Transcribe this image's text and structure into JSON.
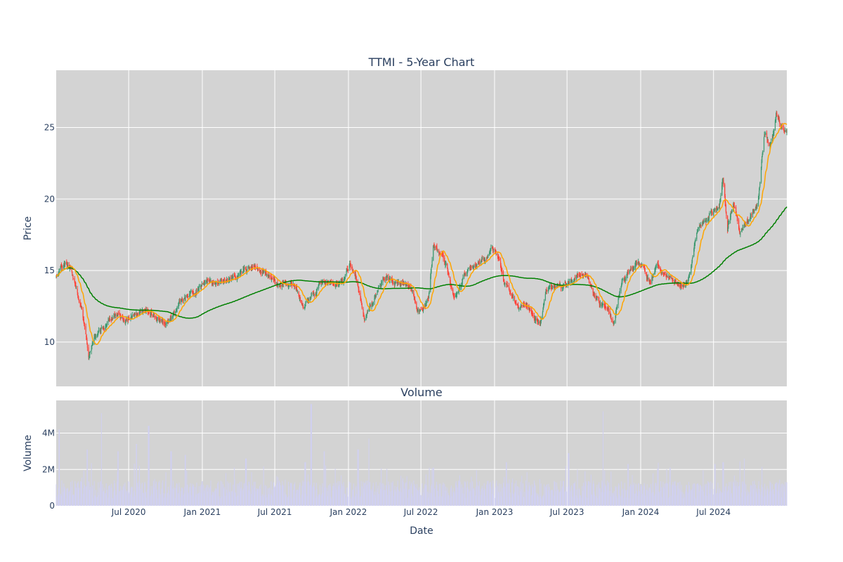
{
  "chart_data": [
    {
      "type": "candlestick",
      "title": "TTMI - 5-Year Chart",
      "ylabel": "Price",
      "ylim": [
        6.9,
        29.0
      ],
      "xlim": [
        "2020-01-02",
        "2024-12-31"
      ],
      "yticks": [
        10,
        15,
        20,
        25
      ],
      "grid": true,
      "legend": "none",
      "colors": {
        "background": "#d3d3d3",
        "grid": "#ffffff",
        "increasing": "#3d9970",
        "decreasing": "#ff4136",
        "ma_short": "#ffa500",
        "ma_long": "#008000"
      },
      "anchors": [
        [
          "2020-01-02",
          14.6
        ],
        [
          "2020-01-20",
          15.4
        ],
        [
          "2020-02-05",
          15.2
        ],
        [
          "2020-02-20",
          13.9
        ],
        [
          "2020-03-05",
          12.6
        ],
        [
          "2020-03-16",
          10.6
        ],
        [
          "2020-03-23",
          8.9
        ],
        [
          "2020-04-06",
          10.3
        ],
        [
          "2020-04-20",
          10.9
        ],
        [
          "2020-05-05",
          11.0
        ],
        [
          "2020-05-20",
          11.6
        ],
        [
          "2020-06-05",
          12.1
        ],
        [
          "2020-06-20",
          11.4
        ],
        [
          "2020-07-10",
          11.8
        ],
        [
          "2020-08-01",
          12.2
        ],
        [
          "2020-08-20",
          12.1
        ],
        [
          "2020-09-10",
          11.6
        ],
        [
          "2020-10-01",
          11.2
        ],
        [
          "2020-10-20",
          12.2
        ],
        [
          "2020-11-10",
          12.9
        ],
        [
          "2020-12-01",
          13.3
        ],
        [
          "2020-12-20",
          13.7
        ],
        [
          "2021-01-10",
          14.1
        ],
        [
          "2021-02-01",
          14.0
        ],
        [
          "2021-02-20",
          14.3
        ],
        [
          "2021-03-15",
          14.4
        ],
        [
          "2021-04-05",
          14.8
        ],
        [
          "2021-04-25",
          15.1
        ],
        [
          "2021-05-15",
          15.1
        ],
        [
          "2021-06-05",
          14.9
        ],
        [
          "2021-06-25",
          14.2
        ],
        [
          "2021-07-10",
          13.9
        ],
        [
          "2021-07-25",
          14.1
        ],
        [
          "2021-08-10",
          14.0
        ],
        [
          "2021-08-25",
          13.7
        ],
        [
          "2021-09-10",
          12.6
        ],
        [
          "2021-09-25",
          13.2
        ],
        [
          "2021-10-10",
          13.5
        ],
        [
          "2021-10-25",
          14.3
        ],
        [
          "2021-11-15",
          14.2
        ],
        [
          "2021-12-05",
          14.0
        ],
        [
          "2021-12-20",
          14.4
        ],
        [
          "2022-01-05",
          15.5
        ],
        [
          "2022-01-20",
          14.5
        ],
        [
          "2022-02-01",
          13.0
        ],
        [
          "2022-02-10",
          11.8
        ],
        [
          "2022-02-25",
          12.4
        ],
        [
          "2022-03-15",
          13.4
        ],
        [
          "2022-04-05",
          14.6
        ],
        [
          "2022-04-25",
          14.1
        ],
        [
          "2022-05-15",
          14.3
        ],
        [
          "2022-06-05",
          14.0
        ],
        [
          "2022-06-20",
          12.4
        ],
        [
          "2022-07-05",
          12.1
        ],
        [
          "2022-07-20",
          12.9
        ],
        [
          "2022-08-01",
          16.5
        ],
        [
          "2022-08-20",
          16.3
        ],
        [
          "2022-09-05",
          15.2
        ],
        [
          "2022-09-20",
          13.2
        ],
        [
          "2022-10-05",
          13.7
        ],
        [
          "2022-10-20",
          15.0
        ],
        [
          "2022-11-10",
          15.3
        ],
        [
          "2022-11-25",
          15.7
        ],
        [
          "2022-12-10",
          15.6
        ],
        [
          "2022-12-25",
          16.7
        ],
        [
          "2023-01-10",
          15.8
        ],
        [
          "2023-01-25",
          13.9
        ],
        [
          "2023-02-10",
          13.5
        ],
        [
          "2023-02-28",
          12.4
        ],
        [
          "2023-03-15",
          12.5
        ],
        [
          "2023-04-05",
          11.9
        ],
        [
          "2023-04-25",
          11.3
        ],
        [
          "2023-05-10",
          13.5
        ],
        [
          "2023-06-01",
          13.7
        ],
        [
          "2023-06-20",
          13.8
        ],
        [
          "2023-07-10",
          14.1
        ],
        [
          "2023-07-25",
          14.7
        ],
        [
          "2023-08-10",
          14.9
        ],
        [
          "2023-08-25",
          14.4
        ],
        [
          "2023-09-10",
          13.1
        ],
        [
          "2023-09-25",
          12.7
        ],
        [
          "2023-10-10",
          12.4
        ],
        [
          "2023-10-25",
          11.3
        ],
        [
          "2023-11-15",
          14.1
        ],
        [
          "2023-12-05",
          14.8
        ],
        [
          "2023-12-25",
          15.8
        ],
        [
          "2024-01-10",
          14.8
        ],
        [
          "2024-01-25",
          14.2
        ],
        [
          "2024-02-10",
          15.6
        ],
        [
          "2024-02-25",
          14.8
        ],
        [
          "2024-03-15",
          14.6
        ],
        [
          "2024-04-05",
          14.2
        ],
        [
          "2024-04-20",
          14.0
        ],
        [
          "2024-05-05",
          15.0
        ],
        [
          "2024-05-20",
          17.8
        ],
        [
          "2024-06-10",
          18.5
        ],
        [
          "2024-06-25",
          19.0
        ],
        [
          "2024-07-15",
          19.5
        ],
        [
          "2024-07-25",
          21.5
        ],
        [
          "2024-08-05",
          17.9
        ],
        [
          "2024-08-20",
          19.8
        ],
        [
          "2024-09-05",
          17.6
        ],
        [
          "2024-09-20",
          18.4
        ],
        [
          "2024-10-05",
          19.0
        ],
        [
          "2024-10-20",
          19.8
        ],
        [
          "2024-11-05",
          24.6
        ],
        [
          "2024-11-20",
          23.8
        ],
        [
          "2024-12-05",
          25.9
        ],
        [
          "2024-12-20",
          25.0
        ],
        [
          "2024-12-31",
          24.9
        ]
      ]
    },
    {
      "type": "bar",
      "title": "Volume",
      "xlabel": "Date",
      "ylabel": "Volume",
      "ylim": [
        0,
        5800000
      ],
      "yticks": [
        0,
        2000000,
        4000000
      ],
      "ytick_labels": [
        "0",
        "2M",
        "4M"
      ],
      "xtick_dates": [
        "2020-07-01",
        "2021-01-01",
        "2021-07-01",
        "2022-01-01",
        "2022-07-01",
        "2023-01-01",
        "2023-07-01",
        "2024-01-01",
        "2024-07-01"
      ],
      "xtick_labels": [
        "Jul 2020",
        "Jan 2021",
        "Jul 2021",
        "Jan 2022",
        "Jul 2022",
        "Jan 2023",
        "Jul 2023",
        "Jan 2024",
        "Jul 2024"
      ],
      "grid": true,
      "colors": {
        "bar": "#d0d0f0"
      },
      "spikes": [
        [
          "2020-01-10",
          4200000
        ],
        [
          "2020-03-20",
          3100000
        ],
        [
          "2020-04-25",
          5100000
        ],
        [
          "2020-06-05",
          3000000
        ],
        [
          "2020-07-20",
          3400000
        ],
        [
          "2020-08-20",
          4400000
        ],
        [
          "2020-10-15",
          3000000
        ],
        [
          "2020-11-20",
          2800000
        ],
        [
          "2021-04-20",
          2600000
        ],
        [
          "2021-09-15",
          2400000
        ],
        [
          "2021-09-30",
          5600000
        ],
        [
          "2021-11-01",
          3000000
        ],
        [
          "2022-01-25",
          3100000
        ],
        [
          "2022-02-20",
          3700000
        ],
        [
          "2022-08-01",
          2100000
        ],
        [
          "2023-01-30",
          2400000
        ],
        [
          "2023-07-05",
          2900000
        ],
        [
          "2023-09-30",
          5200000
        ],
        [
          "2023-12-01",
          2300000
        ],
        [
          "2024-03-15",
          2100000
        ],
        [
          "2024-07-05",
          2300000
        ],
        [
          "2024-07-25",
          2400000
        ],
        [
          "2024-09-15",
          2600000
        ]
      ]
    }
  ]
}
